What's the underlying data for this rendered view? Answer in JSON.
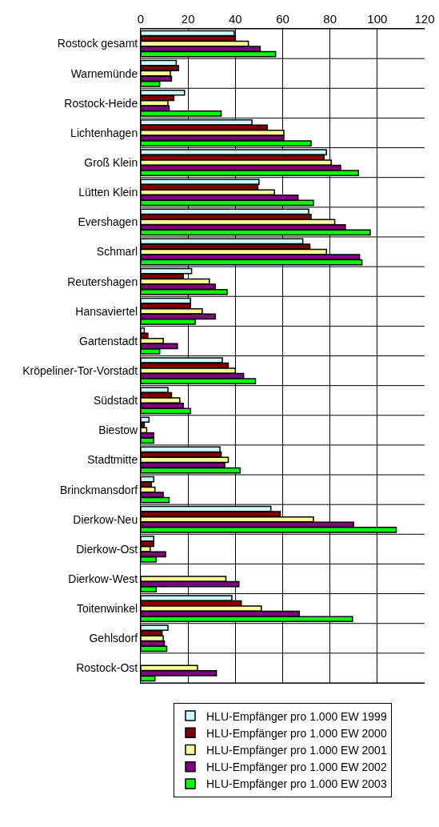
{
  "chart_data": {
    "type": "bar",
    "orientation": "horizontal",
    "categories": [
      "Rostock gesamt",
      "Warnemünde",
      "Rostock-Heide",
      "Lichtenhagen",
      "Groß Klein",
      "Lütten Klein",
      "Evershagen",
      "Schmarl",
      "Reutershagen",
      "Hansaviertel",
      "Gartenstadt",
      "Kröpeliner-Tor-Vorstadt",
      "Südstadt",
      "Biestow",
      "Stadtmitte",
      "Brinckmansdorf",
      "Dierkow-Neu",
      "Dierkow-Ost",
      "Dierkow-West",
      "Toitenwinkel",
      "Gehlsdorf",
      "Rostock-Ost"
    ],
    "series": [
      {
        "name": "HLU-Empfänger pro 1.000 EW 1999",
        "color": "#ccffff",
        "values": [
          39.5,
          15,
          18.5,
          47,
          78.5,
          50,
          71,
          68.5,
          21.5,
          21,
          1.5,
          34.5,
          11.5,
          3.5,
          33.5,
          5.5,
          55,
          5.5,
          null,
          38.5,
          11.5,
          null
        ]
      },
      {
        "name": "HLU-Empfänger pro 1.000 EW 2000",
        "color": "#800000",
        "values": [
          40,
          16,
          14,
          53.5,
          77.5,
          49.5,
          72,
          71.5,
          18,
          21,
          3,
          37,
          13,
          1.5,
          34,
          4.5,
          59,
          5.5,
          null,
          42.5,
          9,
          null
        ]
      },
      {
        "name": "HLU-Empfänger pro 1.000 EW 2001",
        "color": "#ffff99",
        "values": [
          45.5,
          12.5,
          11.5,
          60.5,
          80.5,
          56.5,
          82,
          78.5,
          29,
          26,
          9.5,
          40,
          16.5,
          2.5,
          37,
          6,
          73,
          4,
          36,
          51,
          9.5,
          24
        ]
      },
      {
        "name": "HLU-Empfänger pro 1.000 EW 2002",
        "color": "#800080",
        "values": [
          50.5,
          13,
          12,
          60.5,
          84.5,
          66.5,
          86.5,
          92.5,
          31.5,
          31.5,
          15.5,
          43.5,
          18,
          5.5,
          35.5,
          9.5,
          90,
          10.5,
          41.5,
          67,
          10,
          32
        ]
      },
      {
        "name": "HLU-Empfänger pro 1.000 EW 2003",
        "color": "#00ff00",
        "values": [
          57,
          8,
          34,
          72,
          92,
          73,
          97,
          93.5,
          36.5,
          23,
          8,
          48.5,
          21,
          5.5,
          42,
          12,
          108,
          6.5,
          6.5,
          89.5,
          11,
          6
        ]
      }
    ],
    "xlim": [
      0,
      120
    ],
    "xticks": [
      0,
      20,
      40,
      60,
      80,
      100,
      120
    ],
    "grid": true,
    "legend": "bottom"
  }
}
